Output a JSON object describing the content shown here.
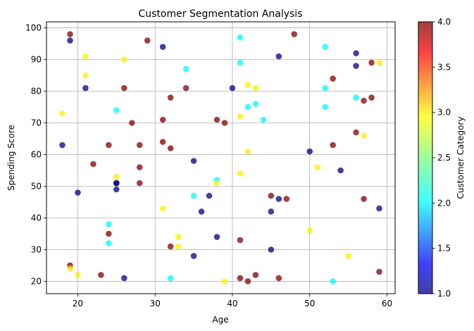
{
  "chart_data": {
    "type": "scatter",
    "title": "Customer Segmentation Analysis",
    "xlabel": "Age",
    "ylabel": "Spending Score",
    "xlim": [
      15.95,
      61.05
    ],
    "ylim": [
      16.1,
      101.9
    ],
    "xticks": [
      20,
      30,
      40,
      50,
      60
    ],
    "yticks": [
      20,
      30,
      40,
      50,
      60,
      70,
      80,
      90,
      100
    ],
    "grid": true,
    "colorbar": {
      "label": "Customer Category",
      "range": [
        1.0,
        4.0
      ],
      "ticks": [
        "1.0",
        "1.5",
        "2.0",
        "2.5",
        "3.0",
        "3.5",
        "4.0"
      ],
      "colors": [
        "#000080",
        "#0000ff",
        "#00ffff",
        "#ffff00",
        "#ff0000",
        "#800000"
      ]
    },
    "point_alpha": 0.75,
    "points": [
      {
        "x": 19,
        "y": 98,
        "c": 4
      },
      {
        "x": 19,
        "y": 96,
        "c": 1
      },
      {
        "x": 29,
        "y": 96,
        "c": 4
      },
      {
        "x": 31,
        "y": 94,
        "c": 1
      },
      {
        "x": 41,
        "y": 97,
        "c": 2
      },
      {
        "x": 48,
        "y": 98,
        "c": 4
      },
      {
        "x": 52,
        "y": 94,
        "c": 2
      },
      {
        "x": 56,
        "y": 92,
        "c": 1
      },
      {
        "x": 46,
        "y": 91,
        "c": 1
      },
      {
        "x": 21,
        "y": 91,
        "c": 3
      },
      {
        "x": 26,
        "y": 90,
        "c": 3
      },
      {
        "x": 41,
        "y": 89,
        "c": 2
      },
      {
        "x": 56,
        "y": 88,
        "c": 1
      },
      {
        "x": 58,
        "y": 89,
        "c": 4
      },
      {
        "x": 59,
        "y": 89,
        "c": 3
      },
      {
        "x": 34,
        "y": 87,
        "c": 2
      },
      {
        "x": 21,
        "y": 85,
        "c": 3
      },
      {
        "x": 53,
        "y": 84,
        "c": 4
      },
      {
        "x": 42,
        "y": 82,
        "c": 3
      },
      {
        "x": 43,
        "y": 81,
        "c": 3
      },
      {
        "x": 40,
        "y": 81,
        "c": 1
      },
      {
        "x": 21,
        "y": 81,
        "c": 1
      },
      {
        "x": 26,
        "y": 81,
        "c": 4
      },
      {
        "x": 34,
        "y": 81,
        "c": 4
      },
      {
        "x": 52,
        "y": 81,
        "c": 2
      },
      {
        "x": 56,
        "y": 78,
        "c": 2
      },
      {
        "x": 58,
        "y": 78,
        "c": 4
      },
      {
        "x": 57,
        "y": 77,
        "c": 4
      },
      {
        "x": 32,
        "y": 78,
        "c": 4
      },
      {
        "x": 43,
        "y": 76,
        "c": 2
      },
      {
        "x": 42,
        "y": 75,
        "c": 2
      },
      {
        "x": 52,
        "y": 75,
        "c": 2
      },
      {
        "x": 25,
        "y": 74,
        "c": 2
      },
      {
        "x": 18,
        "y": 73,
        "c": 3
      },
      {
        "x": 41,
        "y": 72,
        "c": 3
      },
      {
        "x": 44,
        "y": 71,
        "c": 2
      },
      {
        "x": 31,
        "y": 71,
        "c": 4
      },
      {
        "x": 38,
        "y": 71,
        "c": 4
      },
      {
        "x": 39,
        "y": 70,
        "c": 4
      },
      {
        "x": 27,
        "y": 70,
        "c": 4
      },
      {
        "x": 56,
        "y": 67,
        "c": 4
      },
      {
        "x": 57,
        "y": 66,
        "c": 3
      },
      {
        "x": 31,
        "y": 64,
        "c": 4
      },
      {
        "x": 18,
        "y": 63,
        "c": 1
      },
      {
        "x": 24,
        "y": 63,
        "c": 4
      },
      {
        "x": 28,
        "y": 63,
        "c": 4
      },
      {
        "x": 53,
        "y": 63,
        "c": 4
      },
      {
        "x": 32,
        "y": 62,
        "c": 4
      },
      {
        "x": 42,
        "y": 61,
        "c": 3
      },
      {
        "x": 50,
        "y": 61,
        "c": 1
      },
      {
        "x": 35,
        "y": 58,
        "c": 1
      },
      {
        "x": 22,
        "y": 57,
        "c": 4
      },
      {
        "x": 28,
        "y": 56,
        "c": 4
      },
      {
        "x": 51,
        "y": 56,
        "c": 3
      },
      {
        "x": 54,
        "y": 55,
        "c": 1
      },
      {
        "x": 41,
        "y": 54,
        "c": 3
      },
      {
        "x": 25,
        "y": 53,
        "c": 3
      },
      {
        "x": 38,
        "y": 52,
        "c": 2
      },
      {
        "x": 38,
        "y": 51,
        "c": 3
      },
      {
        "x": 25,
        "y": 51,
        "c": 1
      },
      {
        "x": 25,
        "y": 51,
        "c": 1
      },
      {
        "x": 28,
        "y": 51,
        "c": 4
      },
      {
        "x": 25,
        "y": 49,
        "c": 1
      },
      {
        "x": 20,
        "y": 48,
        "c": 1
      },
      {
        "x": 35,
        "y": 47,
        "c": 2
      },
      {
        "x": 37,
        "y": 47,
        "c": 1
      },
      {
        "x": 45,
        "y": 47,
        "c": 4
      },
      {
        "x": 46,
        "y": 46,
        "c": 1
      },
      {
        "x": 47,
        "y": 46,
        "c": 4
      },
      {
        "x": 57,
        "y": 46,
        "c": 4
      },
      {
        "x": 31,
        "y": 43,
        "c": 3
      },
      {
        "x": 59,
        "y": 43,
        "c": 1
      },
      {
        "x": 36,
        "y": 42,
        "c": 1
      },
      {
        "x": 45,
        "y": 42,
        "c": 1
      },
      {
        "x": 24,
        "y": 38,
        "c": 2
      },
      {
        "x": 50,
        "y": 36,
        "c": 3
      },
      {
        "x": 24,
        "y": 35,
        "c": 4
      },
      {
        "x": 33,
        "y": 34,
        "c": 3
      },
      {
        "x": 38,
        "y": 34,
        "c": 1
      },
      {
        "x": 41,
        "y": 33,
        "c": 4
      },
      {
        "x": 24,
        "y": 32,
        "c": 2
      },
      {
        "x": 32,
        "y": 31,
        "c": 4
      },
      {
        "x": 33,
        "y": 31,
        "c": 3
      },
      {
        "x": 45,
        "y": 30,
        "c": 1
      },
      {
        "x": 35,
        "y": 28,
        "c": 1
      },
      {
        "x": 55,
        "y": 28,
        "c": 3
      },
      {
        "x": 19,
        "y": 25,
        "c": 4
      },
      {
        "x": 19,
        "y": 24,
        "c": 3
      },
      {
        "x": 59,
        "y": 23,
        "c": 4
      },
      {
        "x": 20,
        "y": 22,
        "c": 3
      },
      {
        "x": 23,
        "y": 22,
        "c": 4
      },
      {
        "x": 43,
        "y": 22,
        "c": 4
      },
      {
        "x": 26,
        "y": 21,
        "c": 1
      },
      {
        "x": 32,
        "y": 21,
        "c": 2
      },
      {
        "x": 41,
        "y": 21,
        "c": 4
      },
      {
        "x": 46,
        "y": 21,
        "c": 4
      },
      {
        "x": 39,
        "y": 20,
        "c": 3
      },
      {
        "x": 42,
        "y": 20,
        "c": 4
      },
      {
        "x": 53,
        "y": 20,
        "c": 2
      }
    ]
  }
}
